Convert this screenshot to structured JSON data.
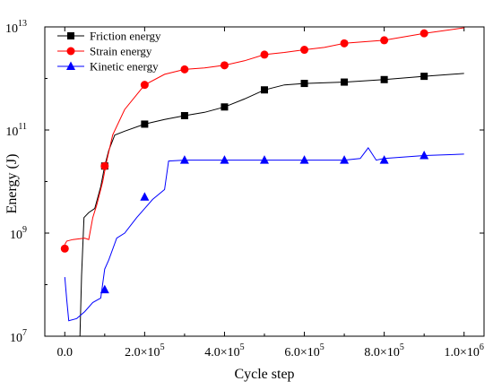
{
  "chart_data": {
    "type": "line",
    "title": "",
    "xlabel": "Cycle step",
    "ylabel": "Energy (J)",
    "y_scale": "log",
    "xlim": [
      -50000,
      1050000
    ],
    "ylim": [
      10000000.0,
      10000000000000.0
    ],
    "x_ticks": [
      {
        "value": 0,
        "label": "0.0"
      },
      {
        "value": 200000,
        "label": "2.0×10",
        "exp": "5"
      },
      {
        "value": 400000,
        "label": "4.0×10",
        "exp": "5"
      },
      {
        "value": 600000,
        "label": "6.0×10",
        "exp": "5"
      },
      {
        "value": 800000,
        "label": "8.0×10",
        "exp": "5"
      },
      {
        "value": 1000000,
        "label": "1.0×10",
        "exp": "6"
      }
    ],
    "y_ticks": [
      {
        "value": 10000000.0,
        "base": "10",
        "exp": "7"
      },
      {
        "value": 1000000000.0,
        "base": "10",
        "exp": "9"
      },
      {
        "value": 100000000000.0,
        "base": "10",
        "exp": "11"
      },
      {
        "value": 10000000000000.0,
        "base": "10",
        "exp": "13"
      }
    ],
    "legend_position": "top-left",
    "series": [
      {
        "name": "Friction energy",
        "color": "#000000",
        "marker": "square",
        "line": [
          [
            38000,
            10000000.0
          ],
          [
            42000,
            150000000.0
          ],
          [
            48000,
            2000000000.0
          ],
          [
            60000,
            2500000000.0
          ],
          [
            75000,
            3000000000.0
          ],
          [
            90000,
            8000000000.0
          ],
          [
            100000,
            20000000000.0
          ],
          [
            110000,
            40000000000.0
          ],
          [
            125000,
            80000000000.0
          ],
          [
            150000,
            95000000000.0
          ],
          [
            200000,
            130000000000.0
          ],
          [
            250000,
            160000000000.0
          ],
          [
            300000,
            190000000000.0
          ],
          [
            350000,
            220000000000.0
          ],
          [
            400000,
            280000000000.0
          ],
          [
            450000,
            400000000000.0
          ],
          [
            500000,
            600000000000.0
          ],
          [
            550000,
            750000000000.0
          ],
          [
            600000,
            800000000000.0
          ],
          [
            700000,
            850000000000.0
          ],
          [
            800000,
            950000000000.0
          ],
          [
            900000,
            1100000000000.0
          ],
          [
            1000000,
            1250000000000.0
          ]
        ],
        "markers": [
          [
            100000,
            20000000000.0
          ],
          [
            200000,
            130000000000.0
          ],
          [
            300000,
            190000000000.0
          ],
          [
            400000,
            280000000000.0
          ],
          [
            500000,
            600000000000.0
          ],
          [
            600000,
            800000000000.0
          ],
          [
            700000,
            850000000000.0
          ],
          [
            800000,
            950000000000.0
          ],
          [
            900000,
            1100000000000.0
          ]
        ]
      },
      {
        "name": "Strain energy",
        "color": "#ff0000",
        "marker": "circle",
        "line": [
          [
            0,
            600000000.0
          ],
          [
            5000,
            700000000.0
          ],
          [
            20000,
            750000000.0
          ],
          [
            50000,
            800000000.0
          ],
          [
            60000,
            750000000.0
          ],
          [
            70000,
            2000000000.0
          ],
          [
            80000,
            3500000000.0
          ],
          [
            95000,
            10000000000.0
          ],
          [
            105000,
            25000000000.0
          ],
          [
            120000,
            80000000000.0
          ],
          [
            150000,
            250000000000.0
          ],
          [
            200000,
            750000000000.0
          ],
          [
            250000,
            1200000000000.0
          ],
          [
            300000,
            1500000000000.0
          ],
          [
            350000,
            1600000000000.0
          ],
          [
            400000,
            1800000000000.0
          ],
          [
            450000,
            2200000000000.0
          ],
          [
            500000,
            2900000000000.0
          ],
          [
            550000,
            3200000000000.0
          ],
          [
            600000,
            3600000000000.0
          ],
          [
            650000,
            4000000000000.0
          ],
          [
            700000,
            4800000000000.0
          ],
          [
            800000,
            5500000000000.0
          ],
          [
            900000,
            7500000000000.0
          ],
          [
            1000000,
            9600000000000.0
          ]
        ],
        "markers": [
          [
            0,
            500000000.0
          ],
          [
            100000,
            20000000000.0
          ],
          [
            200000,
            750000000000.0
          ],
          [
            300000,
            1500000000000.0
          ],
          [
            400000,
            1800000000000.0
          ],
          [
            500000,
            2900000000000.0
          ],
          [
            600000,
            3600000000000.0
          ],
          [
            700000,
            4800000000000.0
          ],
          [
            800000,
            5500000000000.0
          ],
          [
            900000,
            7500000000000.0
          ]
        ]
      },
      {
        "name": "Kinetic energy",
        "color": "#0000ff",
        "marker": "triangle",
        "line": [
          [
            0,
            140000000.0
          ],
          [
            5000,
            50000000.0
          ],
          [
            10000,
            20000000.0
          ],
          [
            30000,
            22000000.0
          ],
          [
            50000,
            30000000.0
          ],
          [
            70000,
            45000000.0
          ],
          [
            90000,
            55000000.0
          ],
          [
            100000,
            200000000.0
          ],
          [
            110000,
            300000000.0
          ],
          [
            130000,
            800000000.0
          ],
          [
            150000,
            1000000000.0
          ],
          [
            180000,
            2000000000.0
          ],
          [
            200000,
            3000000000.0
          ],
          [
            220000,
            4500000000.0
          ],
          [
            250000,
            7000000000.0
          ],
          [
            260000,
            25000000000.0
          ],
          [
            300000,
            26000000000.0
          ],
          [
            400000,
            26000000000.0
          ],
          [
            500000,
            26000000000.0
          ],
          [
            600000,
            26000000000.0
          ],
          [
            700000,
            26000000000.0
          ],
          [
            740000,
            28000000000.0
          ],
          [
            760000,
            45000000000.0
          ],
          [
            780000,
            26000000000.0
          ],
          [
            800000,
            28000000000.0
          ],
          [
            900000,
            32000000000.0
          ],
          [
            1000000,
            34000000000.0
          ]
        ],
        "markers": [
          [
            100000,
            80000000.0
          ],
          [
            200000,
            5000000000.0
          ],
          [
            300000,
            26000000000.0
          ],
          [
            400000,
            26000000000.0
          ],
          [
            500000,
            26000000000.0
          ],
          [
            600000,
            26000000000.0
          ],
          [
            700000,
            26000000000.0
          ],
          [
            800000,
            26000000000.0
          ],
          [
            900000,
            32000000000.0
          ]
        ]
      }
    ]
  }
}
